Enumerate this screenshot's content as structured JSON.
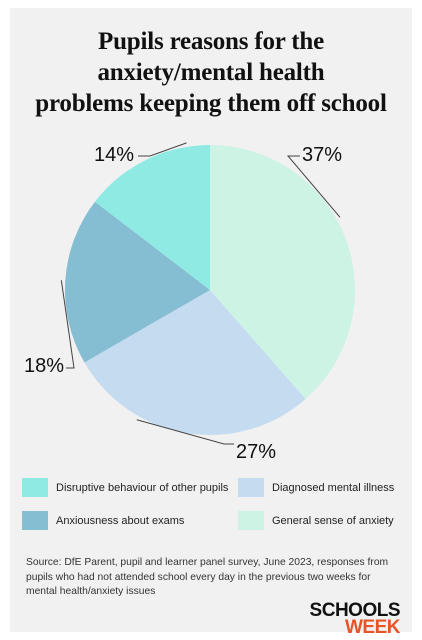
{
  "title_lines": [
    "Pupils reasons for the",
    "anxiety/mental health",
    "problems keeping them off school"
  ],
  "chart_data": {
    "type": "pie",
    "title": "Pupils reasons for the anxiety/mental health problems keeping them off school",
    "slices": [
      {
        "label": "General sense of anxiety",
        "value": 37,
        "value_label": "37%",
        "color": "#cdf3e5"
      },
      {
        "label": "Diagnosed mental illness",
        "value": 27,
        "value_label": "27%",
        "color": "#c5dcf0"
      },
      {
        "label": "Anxiousness about exams",
        "value": 18,
        "value_label": "18%",
        "color": "#85bdd3"
      },
      {
        "label": "Disruptive behaviour of other pupils",
        "value": 14,
        "value_label": "14%",
        "color": "#8eeae3"
      }
    ],
    "legend_order": [
      "Disruptive behaviour of other pupils",
      "Diagnosed mental illness",
      "Anxiousness about exams",
      "General sense of anxiety"
    ]
  },
  "source": "Source: DfE Parent, pupil and learner panel survey, June 2023, responses from pupils who had not attended school every day in the previous two weeks for mental health/anxiety issues",
  "brand": {
    "line1": "SCHOOLS",
    "line2": "WEEK"
  }
}
